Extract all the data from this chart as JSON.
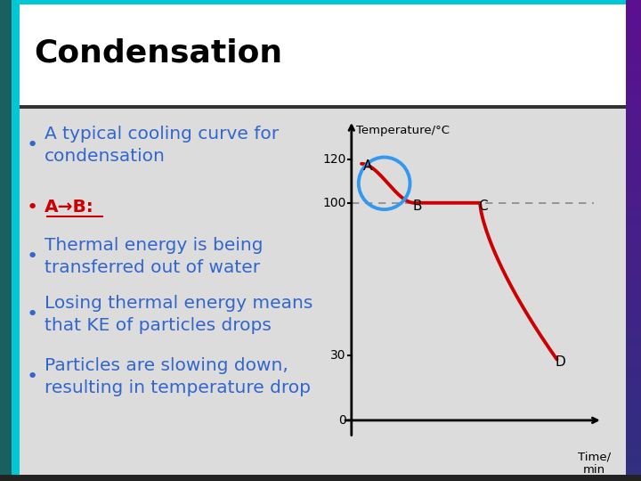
{
  "title": "Condensation",
  "bullet_color": "#3366cc",
  "ab_color": "#cc0000",
  "curve_color": "#cc0000",
  "ellipse_color": "#3399ee",
  "dashed_color": "#888888",
  "bg_color": "#dcdcdc",
  "title_bg": "#ffffff",
  "border_left1": "#1a5c5c",
  "border_left2": "#00c8d4",
  "border_bottom": "#222222",
  "ylabel": "Temperature/°C",
  "ytick_labels": [
    "0",
    "30",
    "100",
    "120"
  ],
  "ytick_vals": [
    0,
    30,
    100,
    120
  ],
  "xlim": [
    -0.3,
    8.8
  ],
  "ylim": [
    -8,
    138
  ]
}
